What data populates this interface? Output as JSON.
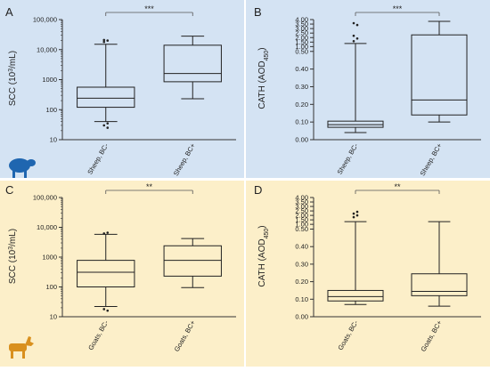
{
  "colors": {
    "sheep_bg": "#d4e3f3",
    "goat_bg": "#fcefc9",
    "sheep_icon": "#1f66b0",
    "goat_icon": "#d9901e"
  },
  "icons": [
    "sheep-icon",
    "goat-icon"
  ],
  "chart_data": [
    {
      "panel": "A",
      "type": "box",
      "ylabel": "SCC (10^3/mL)",
      "yscale": "log",
      "ylim": [
        10,
        100000
      ],
      "yticks": [
        "10",
        "100",
        "1000",
        "10,000",
        "100,000"
      ],
      "categories": [
        "Sheep, BC-",
        "Sheep, BC+"
      ],
      "boxes": [
        {
          "whisker_low": 40,
          "q1": 120,
          "median": 240,
          "q3": 560,
          "whisker_high": 15000,
          "outliers_low": [
            35,
            30,
            25
          ],
          "outliers_high": [
            18000,
            20000,
            21000
          ]
        },
        {
          "whisker_low": 230,
          "q1": 850,
          "median": 1600,
          "q3": 14000,
          "whisker_high": 28000,
          "outliers_low": [],
          "outliers_high": []
        }
      ],
      "significance": "***"
    },
    {
      "panel": "B",
      "type": "box",
      "ylabel": "CATH (AOD450)",
      "yscale": "broken",
      "ylim": [
        0,
        4
      ],
      "yticks_lower": [
        "0.00",
        "0.10",
        "0.20",
        "0.30",
        "0.40",
        "0.50"
      ],
      "yticks_upper": [
        "1.00",
        "1.50",
        "2.00",
        "2.50",
        "3.00",
        "3.50",
        "4.00"
      ],
      "categories": [
        "Sheep, BC-",
        "Sheep, BC+"
      ],
      "boxes": [
        {
          "whisker_low": 0.04,
          "q1": 0.07,
          "median": 0.085,
          "q3": 0.105,
          "whisker_high": 1.35,
          "outliers_low": [],
          "outliers_high": [
            1.6,
            1.9,
            2.2,
            3.4,
            3.6
          ]
        },
        {
          "whisker_low": 0.1,
          "q1": 0.14,
          "median": 0.225,
          "q3": 2.3,
          "whisker_high": 3.8,
          "outliers_low": [],
          "outliers_high": []
        }
      ],
      "significance": "***"
    },
    {
      "panel": "C",
      "type": "box",
      "ylabel": "SCC (10^3/mL)",
      "yscale": "log",
      "ylim": [
        10,
        100000
      ],
      "yticks": [
        "10",
        "100",
        "1000",
        "10,000",
        "100,000"
      ],
      "categories": [
        "Goats, BC-",
        "Goats, BC+"
      ],
      "boxes": [
        {
          "whisker_low": 22,
          "q1": 100,
          "median": 310,
          "q3": 780,
          "whisker_high": 5800,
          "outliers_low": [
            18,
            16
          ],
          "outliers_high": [
            6200,
            6600
          ]
        },
        {
          "whisker_low": 95,
          "q1": 230,
          "median": 780,
          "q3": 2400,
          "whisker_high": 4200,
          "outliers_low": [],
          "outliers_high": []
        }
      ],
      "significance": "**"
    },
    {
      "panel": "D",
      "type": "box",
      "ylabel": "CATH (AOD450)",
      "yscale": "broken",
      "ylim": [
        0,
        4
      ],
      "yticks_lower": [
        "0.00",
        "0.10",
        "0.20",
        "0.30",
        "0.40",
        "0.50"
      ],
      "yticks_upper": [
        "1.00",
        "1.50",
        "2.00",
        "2.50",
        "3.00",
        "3.50",
        "4.00"
      ],
      "categories": [
        "Goats, BC-",
        "Goats, BC+"
      ],
      "boxes": [
        {
          "whisker_low": 0.07,
          "q1": 0.09,
          "median": 0.115,
          "q3": 0.15,
          "whisker_high": 1.3,
          "outliers_low": [],
          "outliers_high": [
            1.8,
            2.0,
            2.2,
            2.4
          ]
        },
        {
          "whisker_low": 0.06,
          "q1": 0.12,
          "median": 0.145,
          "q3": 0.245,
          "whisker_high": 1.3,
          "outliers_low": [],
          "outliers_high": []
        }
      ],
      "significance": "**"
    }
  ]
}
